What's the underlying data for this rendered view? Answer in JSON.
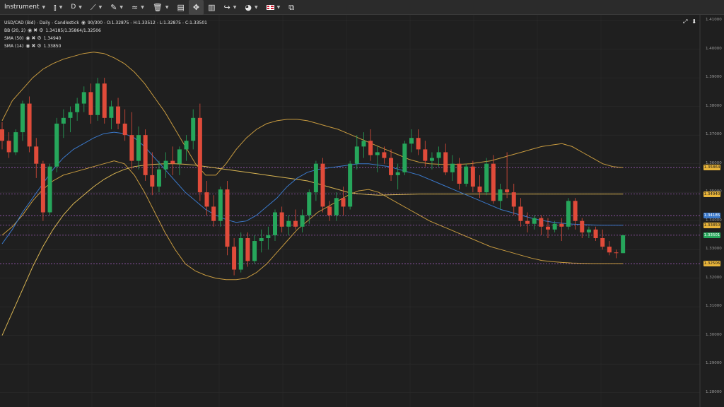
{
  "toolbar": {
    "instrument_label": "Instrument",
    "timeframe_label": "D",
    "icons": [
      "candles-type-icon",
      "line-draw-icon",
      "pencil-icon",
      "indicators-icon",
      "trash-icon",
      "layout-panel-icon",
      "crosshair-icon",
      "bar-chart-icon",
      "share-arrow-icon",
      "theme-icon",
      "uk-flag-icon",
      "popout-window-icon"
    ]
  },
  "legend": {
    "header": "USD/CAD (Bid) - Daily - Candlestick",
    "header_stats": "90/300 - O:1.32875 - H:1.33512 - L:1.32875 - C:1.33501",
    "indicators": [
      {
        "label": "BB (20, 2)",
        "value": "1.34185/1.35864/1.32506"
      },
      {
        "label": "SMA (50)",
        "value": "1.34940"
      },
      {
        "label": "SMA (14)",
        "value": "1.33850"
      }
    ]
  },
  "price_tags": [
    {
      "text": "1.35864",
      "price": 1.35864,
      "bg": "#e8b43a",
      "fg": "#1a1a1a"
    },
    {
      "text": "1.34940",
      "price": 1.3494,
      "bg": "#e8b43a",
      "fg": "#1a1a1a"
    },
    {
      "text": "1.34185",
      "price": 1.34185,
      "bg": "#3a78c9",
      "fg": "#ffffff"
    },
    {
      "text": "1.33850",
      "price": 1.3385,
      "bg": "#e8b43a",
      "fg": "#1a1a1a"
    },
    {
      "text": "1.33501",
      "price": 1.33501,
      "bg": "#26a65b",
      "fg": "#ffffff"
    },
    {
      "text": "1.32506",
      "price": 1.32506,
      "bg": "#e8b43a",
      "fg": "#1a1a1a"
    }
  ],
  "chart_data": {
    "type": "candlestick",
    "y_ticks": [
      "1.41000",
      "1.40000",
      "1.39000",
      "1.38000",
      "1.37000",
      "1.36000",
      "1.35000",
      "1.34000",
      "1.33000",
      "1.32000",
      "1.31000",
      "1.30000",
      "1.29000",
      "1.28000"
    ],
    "ylim": [
      1.275,
      1.412
    ],
    "horizontal_levels": [
      1.35864,
      1.3494,
      1.34185,
      1.3385,
      1.33501,
      1.32506
    ],
    "colors": {
      "up": "#26a65b",
      "down": "#e04b3a",
      "bb": "#c79a3f",
      "sma50": "#d8b452",
      "sma14": "#3a78c9",
      "level": "#9b59b6",
      "grid": "#2c2c2c"
    },
    "candles": [
      [
        1.372,
        1.3745,
        1.365,
        1.368
      ],
      [
        1.368,
        1.371,
        1.362,
        1.364
      ],
      [
        1.364,
        1.372,
        1.363,
        1.371
      ],
      [
        1.371,
        1.382,
        1.368,
        1.381
      ],
      [
        1.381,
        1.3835,
        1.364,
        1.366
      ],
      [
        1.366,
        1.369,
        1.355,
        1.36
      ],
      [
        1.36,
        1.361,
        1.34,
        1.343
      ],
      [
        1.343,
        1.36,
        1.342,
        1.359
      ],
      [
        1.359,
        1.376,
        1.357,
        1.374
      ],
      [
        1.374,
        1.379,
        1.369,
        1.376
      ],
      [
        1.376,
        1.38,
        1.371,
        1.378
      ],
      [
        1.378,
        1.383,
        1.375,
        1.381
      ],
      [
        1.381,
        1.387,
        1.378,
        1.385
      ],
      [
        1.385,
        1.388,
        1.374,
        1.377
      ],
      [
        1.377,
        1.39,
        1.375,
        1.388
      ],
      [
        1.388,
        1.39,
        1.374,
        1.376
      ],
      [
        1.376,
        1.382,
        1.372,
        1.38
      ],
      [
        1.38,
        1.383,
        1.372,
        1.374
      ],
      [
        1.374,
        1.379,
        1.368,
        1.37
      ],
      [
        1.37,
        1.378,
        1.358,
        1.361
      ],
      [
        1.361,
        1.373,
        1.358,
        1.37
      ],
      [
        1.37,
        1.372,
        1.354,
        1.356
      ],
      [
        1.356,
        1.364,
        1.349,
        1.352
      ],
      [
        1.352,
        1.361,
        1.35,
        1.358
      ],
      [
        1.358,
        1.364,
        1.355,
        1.361
      ],
      [
        1.361,
        1.366,
        1.356,
        1.36
      ],
      [
        1.36,
        1.366,
        1.356,
        1.365
      ],
      [
        1.365,
        1.37,
        1.361,
        1.368
      ],
      [
        1.368,
        1.379,
        1.365,
        1.376
      ],
      [
        1.376,
        1.381,
        1.347,
        1.35
      ],
      [
        1.35,
        1.354,
        1.342,
        1.345
      ],
      [
        1.345,
        1.349,
        1.338,
        1.34
      ],
      [
        1.34,
        1.352,
        1.338,
        1.351
      ],
      [
        1.351,
        1.354,
        1.328,
        1.331
      ],
      [
        1.331,
        1.334,
        1.321,
        1.323
      ],
      [
        1.323,
        1.336,
        1.322,
        1.334
      ],
      [
        1.334,
        1.336,
        1.324,
        1.326
      ],
      [
        1.326,
        1.335,
        1.325,
        1.333
      ],
      [
        1.333,
        1.337,
        1.329,
        1.334
      ],
      [
        1.334,
        1.338,
        1.33,
        1.335
      ],
      [
        1.335,
        1.344,
        1.333,
        1.343
      ],
      [
        1.343,
        1.345,
        1.336,
        1.338
      ],
      [
        1.338,
        1.342,
        1.335,
        1.34
      ],
      [
        1.34,
        1.344,
        1.337,
        1.338
      ],
      [
        1.338,
        1.344,
        1.336,
        1.342
      ],
      [
        1.342,
        1.351,
        1.339,
        1.35
      ],
      [
        1.35,
        1.361,
        1.347,
        1.36
      ],
      [
        1.36,
        1.362,
        1.343,
        1.345
      ],
      [
        1.345,
        1.347,
        1.34,
        1.342
      ],
      [
        1.342,
        1.35,
        1.34,
        1.348
      ],
      [
        1.348,
        1.352,
        1.342,
        1.345
      ],
      [
        1.345,
        1.361,
        1.344,
        1.36
      ],
      [
        1.36,
        1.37,
        1.358,
        1.366
      ],
      [
        1.366,
        1.371,
        1.362,
        1.368
      ],
      [
        1.368,
        1.372,
        1.361,
        1.363
      ],
      [
        1.363,
        1.366,
        1.357,
        1.364
      ],
      [
        1.364,
        1.366,
        1.36,
        1.362
      ],
      [
        1.362,
        1.365,
        1.354,
        1.356
      ],
      [
        1.356,
        1.36,
        1.351,
        1.357
      ],
      [
        1.357,
        1.368,
        1.356,
        1.367
      ],
      [
        1.367,
        1.372,
        1.364,
        1.369
      ],
      [
        1.369,
        1.372,
        1.363,
        1.365
      ],
      [
        1.365,
        1.368,
        1.359,
        1.361
      ],
      [
        1.361,
        1.364,
        1.358,
        1.362
      ],
      [
        1.362,
        1.366,
        1.359,
        1.364
      ],
      [
        1.364,
        1.367,
        1.356,
        1.357
      ],
      [
        1.357,
        1.363,
        1.354,
        1.36
      ],
      [
        1.36,
        1.362,
        1.351,
        1.353
      ],
      [
        1.353,
        1.36,
        1.352,
        1.359
      ],
      [
        1.359,
        1.361,
        1.35,
        1.352
      ],
      [
        1.352,
        1.356,
        1.348,
        1.35
      ],
      [
        1.35,
        1.362,
        1.349,
        1.36
      ],
      [
        1.36,
        1.363,
        1.346,
        1.347
      ],
      [
        1.347,
        1.353,
        1.344,
        1.351
      ],
      [
        1.351,
        1.364,
        1.348,
        1.35
      ],
      [
        1.35,
        1.353,
        1.342,
        1.345
      ],
      [
        1.345,
        1.348,
        1.338,
        1.34
      ],
      [
        1.34,
        1.343,
        1.336,
        1.339
      ],
      [
        1.339,
        1.342,
        1.337,
        1.341
      ],
      [
        1.341,
        1.342,
        1.335,
        1.338
      ],
      [
        1.338,
        1.341,
        1.334,
        1.337
      ],
      [
        1.337,
        1.34,
        1.336,
        1.339
      ],
      [
        1.339,
        1.341,
        1.333,
        1.338
      ],
      [
        1.338,
        1.348,
        1.337,
        1.347
      ],
      [
        1.347,
        1.348,
        1.337,
        1.34
      ],
      [
        1.34,
        1.341,
        1.334,
        1.336
      ],
      [
        1.336,
        1.338,
        1.334,
        1.337
      ],
      [
        1.337,
        1.338,
        1.333,
        1.334
      ],
      [
        1.334,
        1.337,
        1.33,
        1.331
      ],
      [
        1.331,
        1.333,
        1.328,
        1.329
      ],
      [
        1.329,
        1.33,
        1.327,
        1.3288
      ],
      [
        1.32875,
        1.33512,
        1.32875,
        1.33501
      ]
    ],
    "series": [
      {
        "name": "BB (20, 2)",
        "role": "upper",
        "values": [
          1.375,
          1.382,
          1.386,
          1.39,
          1.393,
          1.395,
          1.3965,
          1.3975,
          1.3985,
          1.399,
          1.3985,
          1.397,
          1.395,
          1.392,
          1.388,
          1.383,
          1.378,
          1.372,
          1.366,
          1.36,
          1.356,
          1.356,
          1.36,
          1.365,
          1.369,
          1.372,
          1.374,
          1.375,
          1.3755,
          1.3755,
          1.375,
          1.374,
          1.373,
          1.372,
          1.3705,
          1.369,
          1.3675,
          1.366,
          1.3645,
          1.363,
          1.3615,
          1.3605,
          1.36,
          1.3598,
          1.3597,
          1.3598,
          1.36,
          1.3605,
          1.361,
          1.362,
          1.363,
          1.364,
          1.365,
          1.366,
          1.3665,
          1.367,
          1.366,
          1.364,
          1.362,
          1.36,
          1.359,
          1.3586
        ]
      },
      {
        "name": "BB (20, 2)",
        "role": "lower",
        "values": [
          1.335,
          1.338,
          1.342,
          1.347,
          1.351,
          1.354,
          1.356,
          1.357,
          1.358,
          1.359,
          1.36,
          1.361,
          1.36,
          1.356,
          1.35,
          1.343,
          1.336,
          1.33,
          1.325,
          1.3225,
          1.321,
          1.32,
          1.3195,
          1.3195,
          1.32,
          1.322,
          1.325,
          1.329,
          1.333,
          1.337,
          1.34,
          1.343,
          1.345,
          1.347,
          1.349,
          1.3505,
          1.351,
          1.35,
          1.348,
          1.346,
          1.344,
          1.342,
          1.34,
          1.3385,
          1.337,
          1.3355,
          1.334,
          1.3325,
          1.331,
          1.33,
          1.329,
          1.328,
          1.327,
          1.3262,
          1.3258,
          1.3255,
          1.3253,
          1.3252,
          1.3251,
          1.3251,
          1.3251,
          1.3251
        ]
      },
      {
        "name": "SMA (50)",
        "values": [
          1.3,
          1.308,
          1.316,
          1.324,
          1.331,
          1.337,
          1.342,
          1.346,
          1.349,
          1.352,
          1.3545,
          1.3565,
          1.358,
          1.359,
          1.3595,
          1.3598,
          1.36,
          1.36,
          1.3598,
          1.3595,
          1.359,
          1.3585,
          1.358,
          1.3575,
          1.357,
          1.3565,
          1.356,
          1.3555,
          1.355,
          1.3545,
          1.354,
          1.353,
          1.352,
          1.351,
          1.35,
          1.3495,
          1.3492,
          1.349,
          1.3491,
          1.3492,
          1.3493,
          1.3494,
          1.3494,
          1.3494,
          1.3494,
          1.3494,
          1.3494,
          1.3494,
          1.3494,
          1.3494,
          1.3494,
          1.3494,
          1.3494,
          1.3494,
          1.3494,
          1.3494,
          1.3494,
          1.3494,
          1.3494,
          1.3494,
          1.3494,
          1.3494
        ]
      },
      {
        "name": "SMA (14)",
        "values": [
          1.332,
          1.337,
          1.343,
          1.348,
          1.353,
          1.358,
          1.362,
          1.365,
          1.367,
          1.369,
          1.3705,
          1.371,
          1.3705,
          1.369,
          1.366,
          1.362,
          1.358,
          1.354,
          1.35,
          1.347,
          1.344,
          1.342,
          1.3405,
          1.3395,
          1.34,
          1.342,
          1.345,
          1.348,
          1.352,
          1.355,
          1.357,
          1.358,
          1.3585,
          1.359,
          1.3595,
          1.36,
          1.36,
          1.3595,
          1.359,
          1.358,
          1.357,
          1.356,
          1.3545,
          1.353,
          1.3515,
          1.35,
          1.3485,
          1.347,
          1.3455,
          1.344,
          1.343,
          1.342,
          1.341,
          1.3402,
          1.3396,
          1.3392,
          1.3389,
          1.3387,
          1.3386,
          1.3385,
          1.3385,
          1.3385
        ]
      }
    ]
  }
}
